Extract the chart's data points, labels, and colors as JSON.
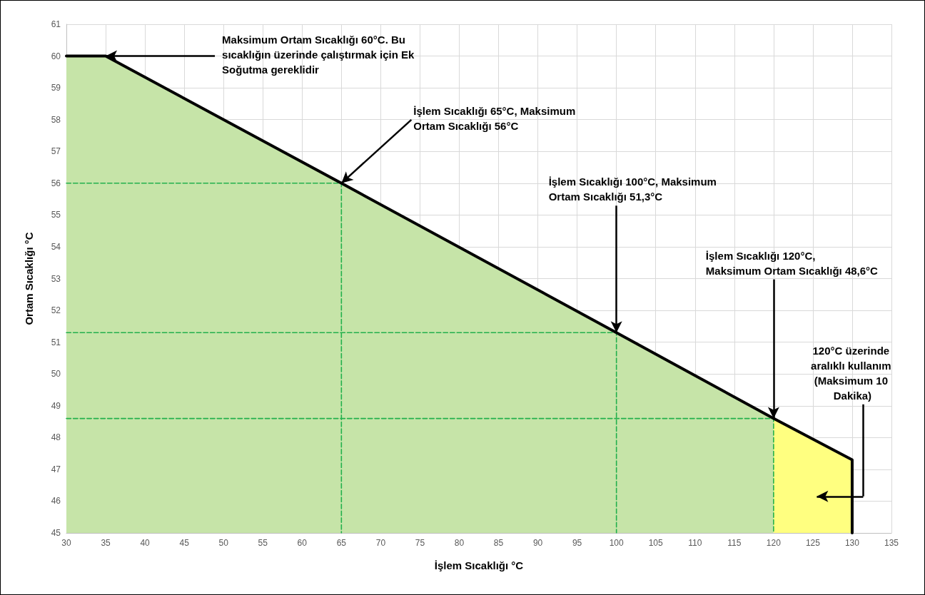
{
  "chart_data": {
    "type": "line",
    "xlabel": "İşlem Sıcaklığı °C",
    "ylabel": "Ortam Sıcaklığı °C",
    "xlim": [
      30,
      135
    ],
    "xticks": [
      30,
      35,
      40,
      45,
      50,
      55,
      60,
      65,
      70,
      75,
      80,
      85,
      90,
      95,
      100,
      105,
      110,
      115,
      120,
      125,
      130,
      135
    ],
    "ylim": [
      45,
      61
    ],
    "yticks": [
      45,
      46,
      47,
      48,
      49,
      50,
      51,
      52,
      53,
      54,
      55,
      56,
      57,
      58,
      59,
      60,
      61
    ],
    "grid": true,
    "marker": "none",
    "series": [
      {
        "type": "area",
        "color": "#c6e4a8",
        "x": [
          30,
          35,
          65,
          100,
          120
        ],
        "values": [
          60,
          60,
          56,
          51.3,
          48.6
        ]
      },
      {
        "type": "area",
        "color": "#ffff80",
        "x": [
          120,
          130
        ],
        "values": [
          48.6,
          47.3
        ]
      },
      {
        "color": "#22b04c",
        "line_style": "dashed",
        "x": [
          30,
          65,
          65
        ],
        "values": [
          56,
          56,
          45
        ]
      },
      {
        "color": "#22b04c",
        "line_style": "dashed",
        "x": [
          30,
          100,
          100
        ],
        "values": [
          51.3,
          51.3,
          45
        ]
      },
      {
        "color": "#22b04c",
        "line_style": "dashed",
        "x": [
          30,
          120,
          120
        ],
        "values": [
          48.6,
          48.6,
          45
        ]
      },
      {
        "color": "#000000",
        "line_style": "solid",
        "x": [
          30,
          35,
          65,
          100,
          120,
          130,
          130
        ],
        "values": [
          60,
          60,
          56,
          51.3,
          48.6,
          47.3,
          45
        ]
      }
    ],
    "annotations": [
      {
        "text": "Maksimum Ortam Sıcaklığı 60°C. Bu sıcaklığın üzerinde çalıştırmak için Ek Soğutma gereklidir",
        "x": 35,
        "y": 60
      },
      {
        "text": "İşlem Sıcaklığı 65°C, Maksimum Ortam Sıcaklığı 56°C",
        "x": 65,
        "y": 56
      },
      {
        "text": "İşlem Sıcaklığı 100°C, Maksimum Ortam Sıcaklığı 51,3°C",
        "x": 100,
        "y": 51.3
      },
      {
        "text": "İşlem Sıcaklığı 120°C, Maksimum Ortam Sıcaklığı 48,6°C",
        "x": 120,
        "y": 48.6
      },
      "120°C üzerinde aralıklı kullanım (Maksimum 10 Dakika)"
    ]
  }
}
